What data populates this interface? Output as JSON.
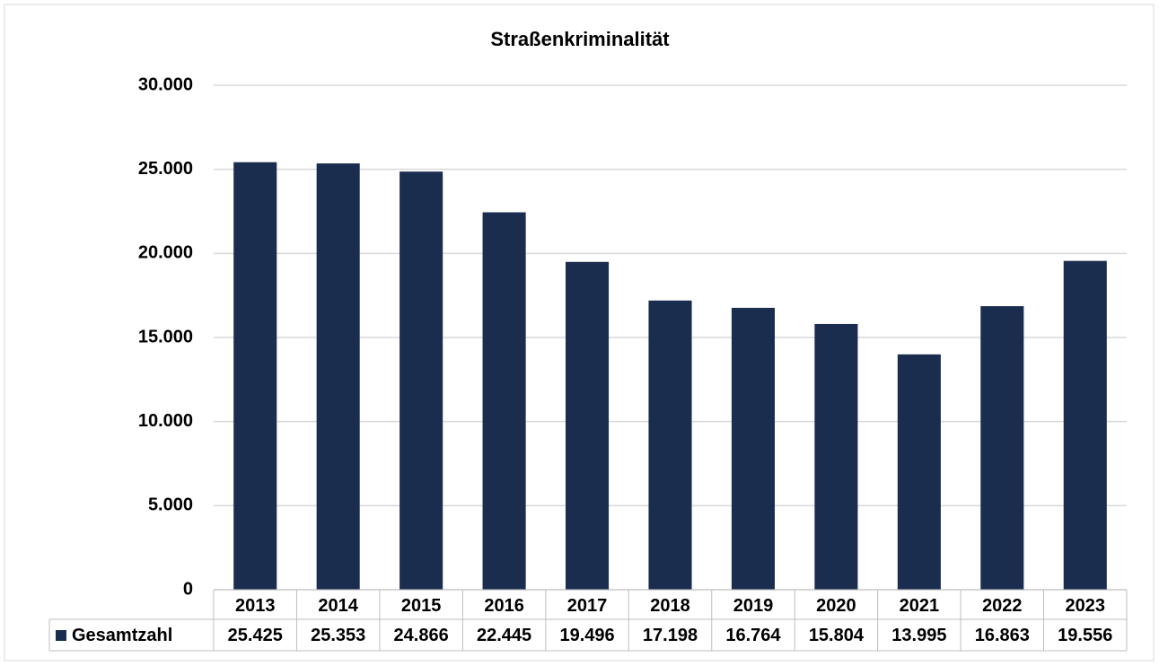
{
  "chart_data": {
    "type": "bar",
    "title": "Straßenkriminalität",
    "categories": [
      "2013",
      "2014",
      "2015",
      "2016",
      "2017",
      "2018",
      "2019",
      "2020",
      "2021",
      "2022",
      "2023"
    ],
    "series": [
      {
        "name": "Gesamtzahl",
        "color": "#1b2d4f",
        "values": [
          25425,
          25353,
          24866,
          22445,
          19496,
          17198,
          16764,
          15804,
          13995,
          16863,
          19556
        ],
        "value_labels": [
          "25.425",
          "25.353",
          "24.866",
          "22.445",
          "19.496",
          "17.198",
          "16.764",
          "15.804",
          "13.995",
          "16.863",
          "19.556"
        ]
      }
    ],
    "ylim": [
      0,
      30000
    ],
    "yticks": [
      0,
      {
        "value": 5000,
        "label": "5.000"
      },
      {
        "value": 10000,
        "label": "10.000"
      },
      {
        "value": 15000,
        "label": "15.000"
      },
      {
        "value": 20000,
        "label": "20.000"
      },
      {
        "value": 25000,
        "label": "25.000"
      },
      {
        "value": 30000,
        "label": "30.000"
      }
    ],
    "grid": true
  }
}
